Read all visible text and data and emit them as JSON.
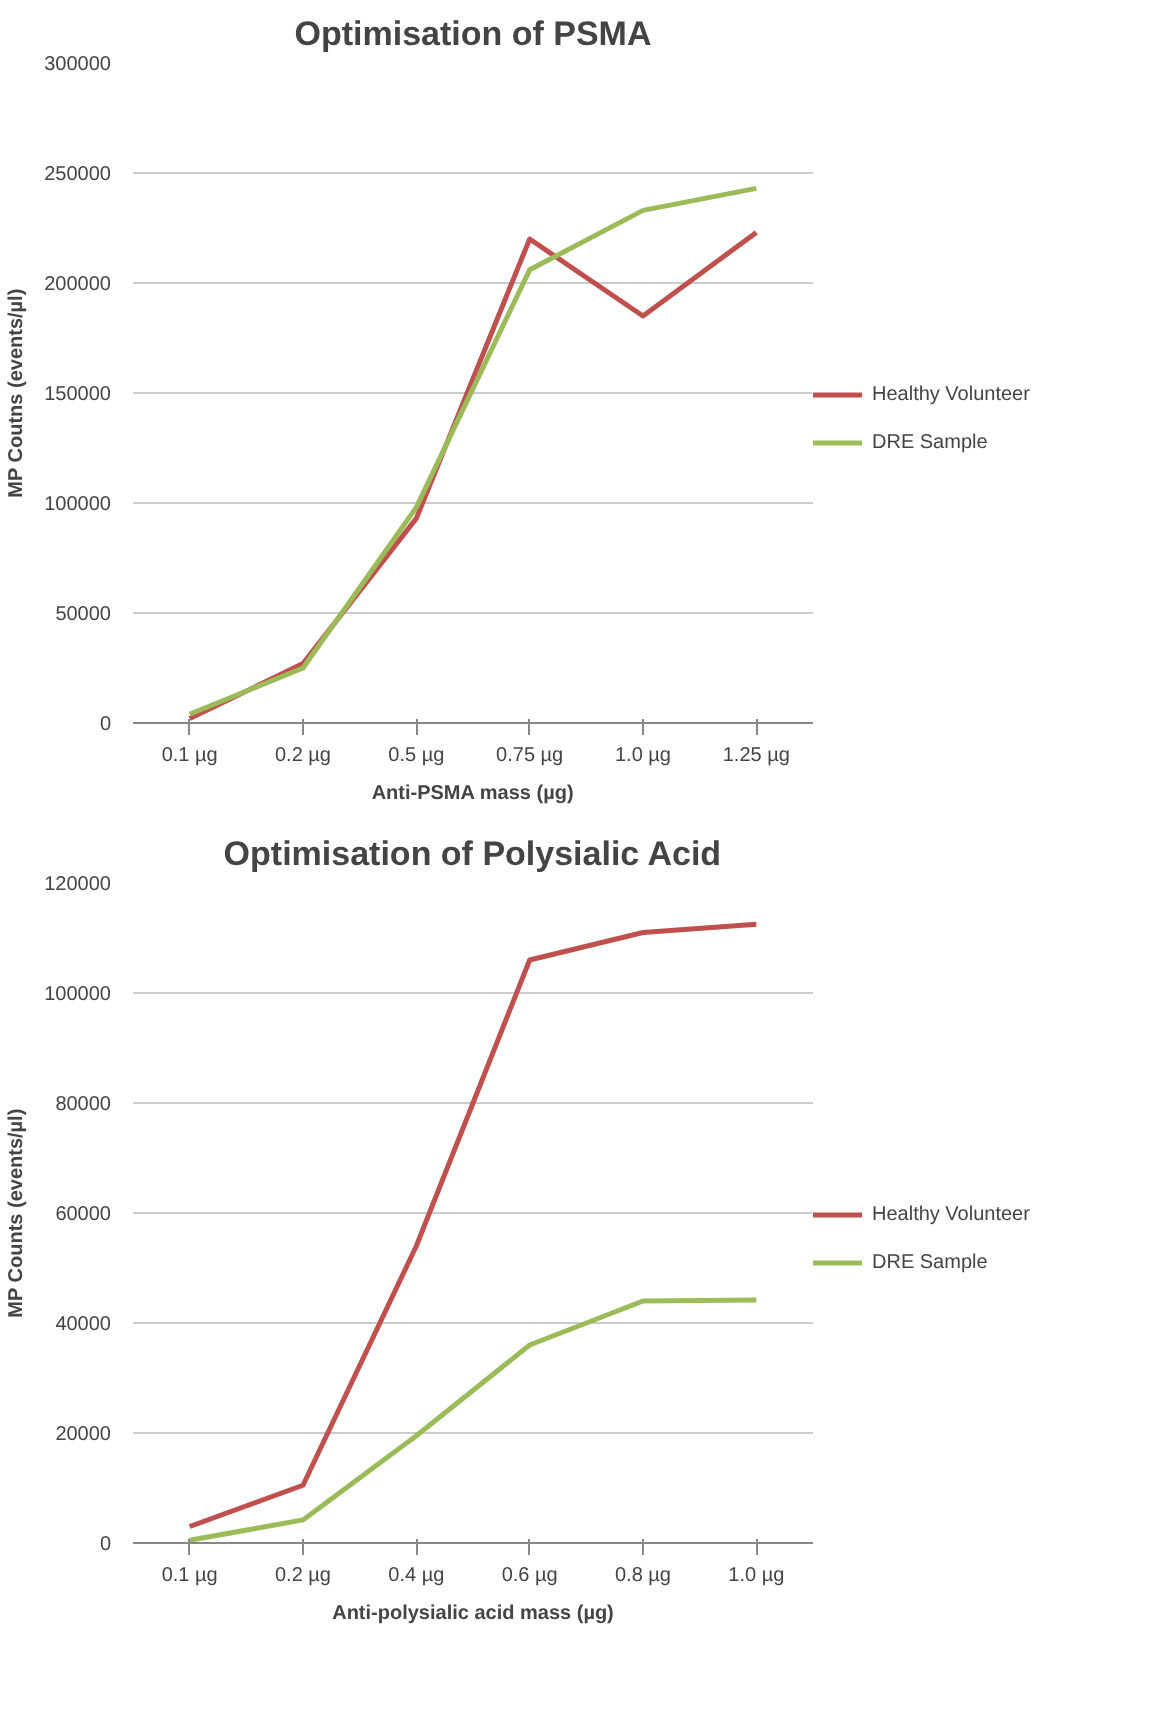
{
  "chart_data": [
    {
      "type": "line",
      "title": "Optimisation of PSMA",
      "xlabel": "Anti-PSMA mass (µg)",
      "ylabel": "MP Coutns (events/µl)",
      "categories": [
        "0.1 µg",
        "0.2 µg",
        "0.5 µg",
        "0.75 µg",
        "1.0 µg",
        "1.25 µg"
      ],
      "series": [
        {
          "name": "Healthy Volunteer",
          "color": "#c0504d",
          "values": [
            2000,
            27000,
            93000,
            220000,
            185000,
            223000
          ]
        },
        {
          "name": "DRE Sample",
          "color": "#9bbb59",
          "values": [
            4000,
            25000,
            98000,
            206000,
            233000,
            243000
          ]
        }
      ],
      "ylim": [
        0,
        300000
      ],
      "yticks": [
        0,
        50000,
        100000,
        150000,
        200000,
        250000,
        300000
      ],
      "grid": "y",
      "legend": "right",
      "marker": "none",
      "line_style": "solid"
    },
    {
      "type": "line",
      "title": "Optimisation of Polysialic Acid",
      "xlabel": "Anti-polysialic acid mass (µg)",
      "ylabel": "MP Counts (events/µl)",
      "categories": [
        "0.1 µg",
        "0.2 µg",
        "0.4 µg",
        "0.6 µg",
        "0.8 µg",
        "1.0 µg"
      ],
      "series": [
        {
          "name": "Healthy Volunteer",
          "color": "#c0504d",
          "values": [
            3000,
            10500,
            54000,
            106000,
            111000,
            112500
          ]
        },
        {
          "name": "DRE Sample",
          "color": "#9bbb59",
          "values": [
            500,
            4200,
            19500,
            36000,
            44000,
            44200
          ]
        }
      ],
      "ylim": [
        0,
        120000
      ],
      "yticks": [
        0,
        20000,
        40000,
        60000,
        80000,
        100000,
        120000
      ],
      "grid": "y",
      "legend": "right",
      "marker": "none",
      "line_style": "solid"
    }
  ]
}
